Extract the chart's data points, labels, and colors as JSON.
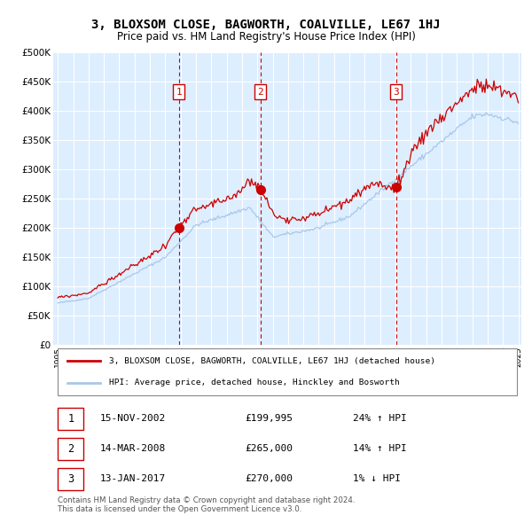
{
  "title": "3, BLOXSOM CLOSE, BAGWORTH, COALVILLE, LE67 1HJ",
  "subtitle": "Price paid vs. HM Land Registry's House Price Index (HPI)",
  "hpi_label": "HPI: Average price, detached house, Hinckley and Bosworth",
  "property_label": "3, BLOXSOM CLOSE, BAGWORTH, COALVILLE, LE67 1HJ (detached house)",
  "transactions": [
    {
      "num": 1,
      "date": "15-NOV-2002",
      "price": 199995,
      "hpi_pct": "24%",
      "hpi_dir": "↑"
    },
    {
      "num": 2,
      "date": "14-MAR-2008",
      "price": 265000,
      "hpi_pct": "14%",
      "hpi_dir": "↑"
    },
    {
      "num": 3,
      "date": "13-JAN-2017",
      "price": 270000,
      "hpi_pct": "1%",
      "hpi_dir": "↓"
    }
  ],
  "transaction_dates_decimal": [
    2002.88,
    2008.2,
    2017.04
  ],
  "transaction_prices": [
    199995,
    265000,
    270000
  ],
  "vline_color": "#cc0000",
  "marker_color": "#cc0000",
  "hpi_line_color": "#a8c8e8",
  "price_line_color": "#cc0000",
  "fig_bg_color": "#ffffff",
  "plot_bg_color": "#ddeeff",
  "grid_color": "#ffffff",
  "footnote1": "Contains HM Land Registry data © Crown copyright and database right 2024.",
  "footnote2": "This data is licensed under the Open Government Licence v3.0.",
  "ylim": [
    0,
    500000
  ],
  "yticks": [
    0,
    50000,
    100000,
    150000,
    200000,
    250000,
    300000,
    350000,
    400000,
    450000,
    500000
  ],
  "year_start": 1995,
  "year_end": 2025
}
